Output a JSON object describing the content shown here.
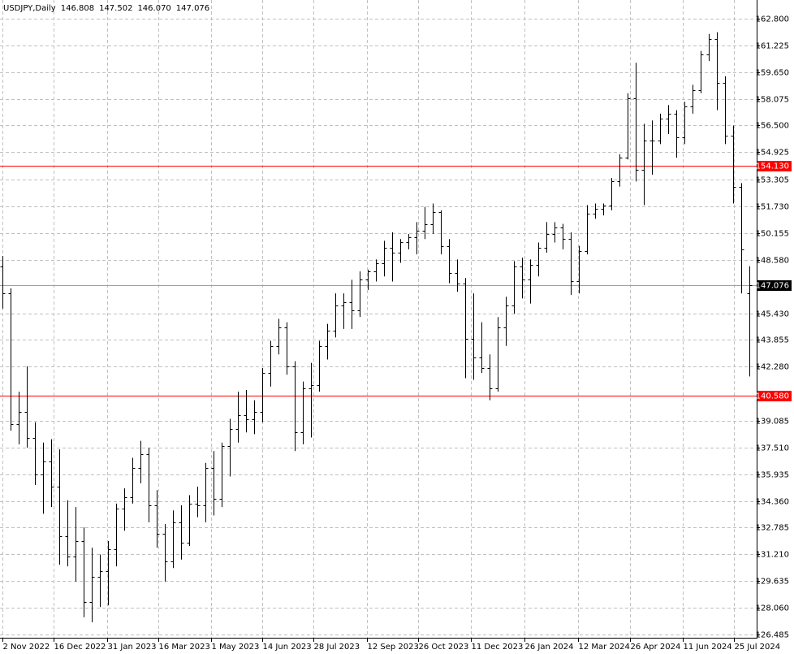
{
  "chart_data": {
    "type": "ohlc",
    "title": "USDJPY,Daily",
    "quote": [
      146.808,
      147.502,
      146.07,
      147.076
    ],
    "quote_labels": [
      "146.808",
      "147.502",
      "146.070",
      "147.076"
    ],
    "color": "#000000",
    "grid": true,
    "x": [
      "2022-11-02",
      "2022-11-09",
      "2022-11-16",
      "2022-11-23",
      "2022-11-30",
      "2022-12-07",
      "2022-12-14",
      "2022-12-21",
      "2022-12-28",
      "2023-01-04",
      "2023-01-11",
      "2023-01-18",
      "2023-01-25",
      "2023-02-01",
      "2023-02-08",
      "2023-02-15",
      "2023-02-22",
      "2023-03-01",
      "2023-03-08",
      "2023-03-15",
      "2023-03-22",
      "2023-03-29",
      "2023-04-05",
      "2023-04-12",
      "2023-04-19",
      "2023-04-26",
      "2023-05-03",
      "2023-05-10",
      "2023-05-17",
      "2023-05-24",
      "2023-05-31",
      "2023-06-07",
      "2023-06-14",
      "2023-06-21",
      "2023-06-28",
      "2023-07-05",
      "2023-07-12",
      "2023-07-19",
      "2023-07-26",
      "2023-08-02",
      "2023-08-09",
      "2023-08-16",
      "2023-08-23",
      "2023-08-30",
      "2023-09-06",
      "2023-09-13",
      "2023-09-20",
      "2023-09-27",
      "2023-10-04",
      "2023-10-11",
      "2023-10-18",
      "2023-10-25",
      "2023-11-01",
      "2023-11-08",
      "2023-11-15",
      "2023-11-22",
      "2023-11-29",
      "2023-12-06",
      "2023-12-13",
      "2023-12-20",
      "2023-12-27",
      "2024-01-03",
      "2024-01-10",
      "2024-01-17",
      "2024-01-24",
      "2024-01-31",
      "2024-02-07",
      "2024-02-14",
      "2024-02-21",
      "2024-02-28",
      "2024-03-06",
      "2024-03-13",
      "2024-03-20",
      "2024-03-27",
      "2024-04-03",
      "2024-04-10",
      "2024-04-17",
      "2024-04-24",
      "2024-05-01",
      "2024-05-08",
      "2024-05-15",
      "2024-05-22",
      "2024-05-29",
      "2024-06-05",
      "2024-06-12",
      "2024-06-19",
      "2024-06-26",
      "2024-07-03",
      "2024-07-10",
      "2024-07-17",
      "2024-07-24",
      "2024-07-31",
      "2024-08-07"
    ],
    "open": [
      148.2,
      146.6,
      138.9,
      139.6,
      138.1,
      135.9,
      136.7,
      135.2,
      132.3,
      131.1,
      132.0,
      128.4,
      129.9,
      130.2,
      131.5,
      133.9,
      134.6,
      136.3,
      137.1,
      134.1,
      132.4,
      130.8,
      133.1,
      131.9,
      134.2,
      134.1,
      136.3,
      134.5,
      137.6,
      138.6,
      139.4,
      139.2,
      139.6,
      141.9,
      143.5,
      144.6,
      142.3,
      138.4,
      141.0,
      141.2,
      143.5,
      144.4,
      145.9,
      146.1,
      145.6,
      147.4,
      147.9,
      148.4,
      149.3,
      149.0,
      149.6,
      149.9,
      150.3,
      150.7,
      151.4,
      149.4,
      147.8,
      147.2,
      143.9,
      142.8,
      142.2,
      141.0,
      144.6,
      145.9,
      148.2,
      147.4,
      148.3,
      149.3,
      150.1,
      150.5,
      149.8,
      147.3,
      149.1,
      151.3,
      151.6,
      151.8,
      153.2,
      154.6,
      158.1,
      153.9,
      155.6,
      155.6,
      156.9,
      157.2,
      155.8,
      157.6,
      158.6,
      160.7,
      161.6,
      159.0,
      155.9,
      152.9,
      146.6
    ],
    "high": [
      148.8,
      146.9,
      140.8,
      142.3,
      139.0,
      137.8,
      138.0,
      137.4,
      134.4,
      134.0,
      132.8,
      131.6,
      131.2,
      132.0,
      134.2,
      135.1,
      136.9,
      137.9,
      137.5,
      135.0,
      133.0,
      133.8,
      134.1,
      134.7,
      135.2,
      136.6,
      137.3,
      137.8,
      139.2,
      140.8,
      140.9,
      140.3,
      142.2,
      143.8,
      145.1,
      144.9,
      142.6,
      141.4,
      142.5,
      143.8,
      144.8,
      146.6,
      146.6,
      147.4,
      147.9,
      148.0,
      148.6,
      149.7,
      150.2,
      149.8,
      150.1,
      150.8,
      151.7,
      151.9,
      151.5,
      149.8,
      148.6,
      147.5,
      146.6,
      144.9,
      143.0,
      145.2,
      146.4,
      148.5,
      148.7,
      148.6,
      149.6,
      150.8,
      150.8,
      150.7,
      150.2,
      149.4,
      151.8,
      151.9,
      151.9,
      153.4,
      154.8,
      158.4,
      160.2,
      156.6,
      156.8,
      157.2,
      157.7,
      157.4,
      157.9,
      158.9,
      160.9,
      161.9,
      162.0,
      159.4,
      156.5,
      153.1,
      148.2
    ],
    "low": [
      145.7,
      138.5,
      137.7,
      137.5,
      135.3,
      133.6,
      134.0,
      130.6,
      130.5,
      129.6,
      127.5,
      127.2,
      128.1,
      128.2,
      130.5,
      132.6,
      134.2,
      135.4,
      133.1,
      131.6,
      129.6,
      130.4,
      130.9,
      131.7,
      133.4,
      133.1,
      133.5,
      134.0,
      135.8,
      137.8,
      138.4,
      138.3,
      139.0,
      141.1,
      143.0,
      141.8,
      137.3,
      137.7,
      138.1,
      140.8,
      142.7,
      144.0,
      144.5,
      144.5,
      145.2,
      146.8,
      147.3,
      147.6,
      147.3,
      148.4,
      149.2,
      148.9,
      149.8,
      150.1,
      148.9,
      147.2,
      146.7,
      141.6,
      141.5,
      141.9,
      140.3,
      140.8,
      143.5,
      145.4,
      146.3,
      146.0,
      147.6,
      149.0,
      149.6,
      149.2,
      146.5,
      146.6,
      148.9,
      151.0,
      151.2,
      151.5,
      152.9,
      154.5,
      153.2,
      151.8,
      153.6,
      155.4,
      156.0,
      154.6,
      155.4,
      157.2,
      158.4,
      160.3,
      157.4,
      155.4,
      151.9,
      146.6,
      141.7
    ],
    "close": [
      146.6,
      138.9,
      139.6,
      138.1,
      135.9,
      136.7,
      135.2,
      132.3,
      131.1,
      132.0,
      128.4,
      129.9,
      130.2,
      131.5,
      133.9,
      134.6,
      136.3,
      137.1,
      134.1,
      132.4,
      130.8,
      133.1,
      131.9,
      134.2,
      134.1,
      136.3,
      134.5,
      137.6,
      138.6,
      139.4,
      139.2,
      139.6,
      141.9,
      143.5,
      144.6,
      142.3,
      138.4,
      141.0,
      141.2,
      143.5,
      144.4,
      145.9,
      146.1,
      145.6,
      147.4,
      147.9,
      148.4,
      149.3,
      149.0,
      149.6,
      149.9,
      150.3,
      150.7,
      151.4,
      149.4,
      147.8,
      147.2,
      143.9,
      142.8,
      142.2,
      141.0,
      144.6,
      145.9,
      148.2,
      147.4,
      148.3,
      149.3,
      150.1,
      150.5,
      149.8,
      147.3,
      149.1,
      151.3,
      151.6,
      151.8,
      153.2,
      154.6,
      158.1,
      153.9,
      155.6,
      155.6,
      156.9,
      157.2,
      155.8,
      157.6,
      158.6,
      160.7,
      161.6,
      159.0,
      155.9,
      152.9,
      149.2,
      147.076
    ],
    "xlim": [
      "2022-11-01",
      "2024-08-12"
    ],
    "xticks": [
      {
        "value": "2022-11-02",
        "label": "2 Nov 2022"
      },
      {
        "value": "2022-12-16",
        "label": "16 Dec 2022"
      },
      {
        "value": "2023-01-31",
        "label": "31 Jan 2023"
      },
      {
        "value": "2023-03-16",
        "label": "16 Mar 2023"
      },
      {
        "value": "2023-05-01",
        "label": "1 May 2023"
      },
      {
        "value": "2023-06-14",
        "label": "14 Jun 2023"
      },
      {
        "value": "2023-07-28",
        "label": "28 Jul 2023"
      },
      {
        "value": "2023-09-12",
        "label": "12 Sep 2023"
      },
      {
        "value": "2023-10-26",
        "label": "26 Oct 2023"
      },
      {
        "value": "2023-12-11",
        "label": "11 Dec 2023"
      },
      {
        "value": "2024-01-26",
        "label": "26 Jan 2024"
      },
      {
        "value": "2024-03-12",
        "label": "12 Mar 2024"
      },
      {
        "value": "2024-04-26",
        "label": "26 Apr 2024"
      },
      {
        "value": "2024-06-11",
        "label": "11 Jun 2024"
      },
      {
        "value": "2024-07-25",
        "label": "25 Jul 2024"
      }
    ],
    "ylim": [
      126.29,
      163.9
    ],
    "yticks": [
      126.485,
      {
        "value": 128.06,
        "label": "128.060"
      },
      129.635,
      {
        "value": 131.21,
        "label": "131.210"
      },
      132.785,
      {
        "value": 134.36,
        "label": "134.360"
      },
      135.935,
      {
        "value": 137.51,
        "label": "137.510"
      },
      139.085,
      {
        "value": 142.28,
        "label": "142.280"
      },
      143.855,
      {
        "value": 145.43,
        "label": "145.430"
      },
      {
        "value": 148.58,
        "label": "148.580"
      },
      150.155,
      {
        "value": 151.73,
        "label": "151.730"
      },
      153.305,
      154.925,
      {
        "value": 156.5,
        "label": "156.500"
      },
      158.075,
      {
        "value": 159.65,
        "label": "159.650"
      },
      161.225,
      {
        "value": 162.8,
        "label": "162.800"
      }
    ],
    "hlines": [
      {
        "value": 154.13,
        "label": "154.130",
        "color": "#ff0000"
      },
      {
        "value": 140.58,
        "label": "140.580",
        "color": "#ff0000"
      },
      {
        "value": 147.076,
        "label": "147.076",
        "color": "#000000"
      }
    ]
  }
}
